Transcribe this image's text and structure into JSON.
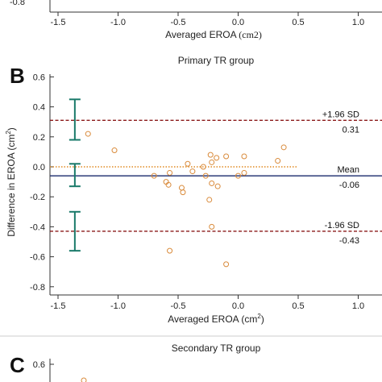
{
  "top_panel": {
    "xlabel": "Averaged EROA",
    "xlabel_unit": "(cm2)",
    "x_ticks": [
      "-1.5",
      "-1.0",
      "-0.5",
      "0.0",
      "0.5",
      "1.0"
    ],
    "partial_y_tick": "-0.8"
  },
  "panel_b": {
    "letter": "B",
    "title": "Primary TR group",
    "ylabel": "Difference in EROA (cm",
    "ylabel_sup": "2",
    "ylabel_end": ")",
    "xlabel": "Averaged EROA (cm",
    "xlabel_sup": "2",
    "xlabel_end": ")",
    "x_ticks": [
      "-1.5",
      "-1.0",
      "-0.5",
      "0.0",
      "0.5",
      "1.0"
    ],
    "y_ticks": [
      "0.6",
      "0.4",
      "0.2",
      "0.0",
      "-0.2",
      "-0.4",
      "-0.6",
      "-0.8"
    ],
    "upper_label": "+1.96 SD",
    "upper_value": "0.31",
    "mean_label": "Mean",
    "mean_value": "-0.06",
    "lower_label": "-1.96 SD",
    "lower_value": "-0.43"
  },
  "panel_c": {
    "letter": "C",
    "title": "Secondary TR group",
    "y_tick": "0.6"
  },
  "colors": {
    "points": "#d98a3a",
    "limits": "#8b1a1a",
    "mean": "#1a2a6c",
    "zero": "#e08a20",
    "ci": "#1a7a6a"
  },
  "chart_data": {
    "type": "scatter",
    "title": "Primary TR group",
    "xlabel": "Averaged EROA (cm2)",
    "ylabel": "Difference in EROA (cm2)",
    "xlim": [
      -1.5,
      1.0
    ],
    "ylim": [
      -0.8,
      0.6
    ],
    "grid": false,
    "points": [
      {
        "x": -1.25,
        "y": 0.22
      },
      {
        "x": -1.03,
        "y": 0.11
      },
      {
        "x": -0.7,
        "y": -0.06
      },
      {
        "x": -0.6,
        "y": -0.1
      },
      {
        "x": -0.58,
        "y": -0.12
      },
      {
        "x": -0.57,
        "y": -0.04
      },
      {
        "x": -0.57,
        "y": -0.56
      },
      {
        "x": -0.47,
        "y": -0.14
      },
      {
        "x": -0.46,
        "y": -0.17
      },
      {
        "x": -0.42,
        "y": 0.02
      },
      {
        "x": -0.38,
        "y": -0.03
      },
      {
        "x": -0.29,
        "y": 0.0
      },
      {
        "x": -0.27,
        "y": -0.06
      },
      {
        "x": -0.24,
        "y": -0.22
      },
      {
        "x": -0.23,
        "y": 0.08
      },
      {
        "x": -0.22,
        "y": 0.03
      },
      {
        "x": -0.22,
        "y": -0.11
      },
      {
        "x": -0.22,
        "y": -0.4
      },
      {
        "x": -0.18,
        "y": 0.06
      },
      {
        "x": -0.17,
        "y": -0.13
      },
      {
        "x": -0.1,
        "y": 0.07
      },
      {
        "x": -0.1,
        "y": -0.65
      },
      {
        "x": 0.0,
        "y": -0.06
      },
      {
        "x": 0.05,
        "y": 0.07
      },
      {
        "x": 0.05,
        "y": -0.04
      },
      {
        "x": 0.33,
        "y": 0.04
      },
      {
        "x": 0.38,
        "y": 0.13
      }
    ],
    "mean": -0.06,
    "upper_loa": 0.31,
    "lower_loa": -0.43,
    "zero_line": 0.0,
    "error_bars": [
      {
        "x": -1.36,
        "center": 0.31,
        "low": 0.18,
        "high": 0.45
      },
      {
        "x": -1.36,
        "center": -0.06,
        "low": -0.13,
        "high": 0.02
      },
      {
        "x": -1.36,
        "center": -0.43,
        "low": -0.56,
        "high": -0.3
      }
    ]
  }
}
